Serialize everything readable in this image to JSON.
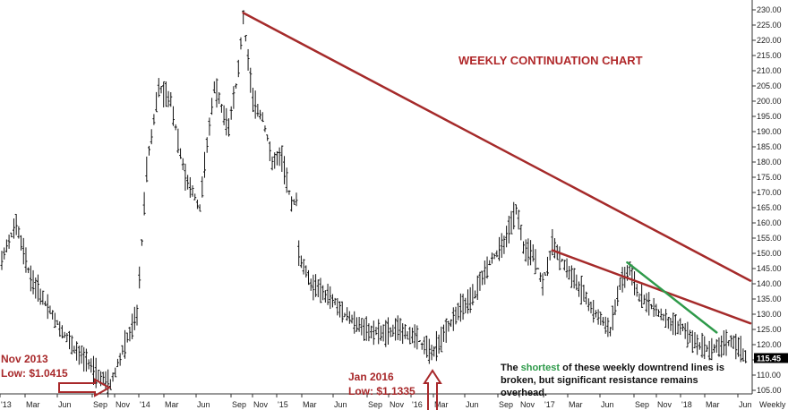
{
  "chart_data": {
    "type": "ohlc",
    "title": "WEEKLY CONTINUATION CHART",
    "ylim": [
      102,
      232
    ],
    "y_ticks": [
      105,
      110,
      115,
      120,
      125,
      130,
      135,
      140,
      145,
      150,
      155,
      160,
      165,
      170,
      175,
      180,
      185,
      190,
      195,
      200,
      205,
      210,
      215,
      220,
      225,
      230
    ],
    "y_tick_labels": [
      "105.00",
      "110.00",
      "115.00",
      "120.00",
      "125.00",
      "130.00",
      "135.00",
      "140.00",
      "145.00",
      "150.00",
      "155.00",
      "160.00",
      "165.00",
      "170.00",
      "175.00",
      "180.00",
      "185.00",
      "190.00",
      "195.00",
      "200.00",
      "205.00",
      "210.00",
      "215.00",
      "220.00",
      "225.00",
      "230.00"
    ],
    "x_tick_labels": [
      "'13",
      "Mar",
      "Jun",
      "Sep",
      "Nov",
      "'14",
      "Mar",
      "Jun",
      "Sep",
      "Nov",
      "'15",
      "Mar",
      "Jun",
      "Sep",
      "Nov",
      "'16",
      "Mar",
      "Jun",
      "Sep",
      "Nov",
      "'17",
      "Mar",
      "Jun",
      "Sep",
      "Nov",
      "'18",
      "Mar",
      "Jun"
    ],
    "timeframe_label": "Weekly",
    "last_price_label": "115.45",
    "last_price": 115.45,
    "price_path": [
      {
        "w": 0,
        "p": 148
      },
      {
        "w": 6,
        "p": 160
      },
      {
        "w": 12,
        "p": 142
      },
      {
        "w": 22,
        "p": 128
      },
      {
        "w": 32,
        "p": 117
      },
      {
        "w": 40,
        "p": 110
      },
      {
        "w": 45,
        "p": 107
      },
      {
        "w": 52,
        "p": 122
      },
      {
        "w": 56,
        "p": 130
      },
      {
        "w": 60,
        "p": 178
      },
      {
        "w": 65,
        "p": 205
      },
      {
        "w": 70,
        "p": 200
      },
      {
        "w": 76,
        "p": 175
      },
      {
        "w": 82,
        "p": 165
      },
      {
        "w": 88,
        "p": 205
      },
      {
        "w": 94,
        "p": 192
      },
      {
        "w": 98,
        "p": 210
      },
      {
        "w": 100,
        "p": 228
      },
      {
        "w": 104,
        "p": 200
      },
      {
        "w": 108,
        "p": 195
      },
      {
        "w": 112,
        "p": 180
      },
      {
        "w": 116,
        "p": 182
      },
      {
        "w": 120,
        "p": 166
      },
      {
        "w": 122,
        "p": 168
      },
      {
        "w": 123,
        "p": 150
      },
      {
        "w": 128,
        "p": 140
      },
      {
        "w": 135,
        "p": 136
      },
      {
        "w": 142,
        "p": 130
      },
      {
        "w": 150,
        "p": 125
      },
      {
        "w": 158,
        "p": 124
      },
      {
        "w": 165,
        "p": 125
      },
      {
        "w": 172,
        "p": 122
      },
      {
        "w": 178,
        "p": 117
      },
      {
        "w": 184,
        "p": 125
      },
      {
        "w": 190,
        "p": 132
      },
      {
        "w": 196,
        "p": 137
      },
      {
        "w": 202,
        "p": 147
      },
      {
        "w": 208,
        "p": 153
      },
      {
        "w": 213,
        "p": 165
      },
      {
        "w": 216,
        "p": 152
      },
      {
        "w": 220,
        "p": 150
      },
      {
        "w": 224,
        "p": 140
      },
      {
        "w": 228,
        "p": 153
      },
      {
        "w": 234,
        "p": 145
      },
      {
        "w": 240,
        "p": 138
      },
      {
        "w": 246,
        "p": 130
      },
      {
        "w": 252,
        "p": 125
      },
      {
        "w": 256,
        "p": 140
      },
      {
        "w": 260,
        "p": 145
      },
      {
        "w": 264,
        "p": 136
      },
      {
        "w": 270,
        "p": 132
      },
      {
        "w": 276,
        "p": 128
      },
      {
        "w": 282,
        "p": 125
      },
      {
        "w": 288,
        "p": 120
      },
      {
        "w": 294,
        "p": 118
      },
      {
        "w": 300,
        "p": 121
      },
      {
        "w": 304,
        "p": 120
      },
      {
        "w": 308,
        "p": 116
      }
    ],
    "trendlines": [
      {
        "color": "#a52a2a",
        "from": {
          "w": 100,
          "p": 229
        },
        "to": {
          "w": 310,
          "p": 141
        }
      },
      {
        "color": "#a52a2a",
        "from": {
          "w": 228,
          "p": 151
        },
        "to": {
          "w": 310,
          "p": 127
        }
      },
      {
        "color": "#2e9a4a",
        "from": {
          "w": 259,
          "p": 147
        },
        "to": {
          "w": 296,
          "p": 124
        }
      }
    ],
    "annotations": {
      "nov2013_line1": "Nov 2013",
      "nov2013_line2": "Low: $1.0415",
      "jan2016_line1": "Jan 2016",
      "jan2016_line2": "Low: $1.1335",
      "note_part1": "The",
      "note_highlight": "shortest",
      "note_part2": "of these weekly downtrend lines is",
      "note_line2": "broken, but significant resistance remains",
      "note_line3": "overhead."
    },
    "colors": {
      "trend_red": "#a52a2a",
      "trend_green": "#2e9a4a",
      "annotation_red": "#a8282a",
      "highlight_green": "#2e9a4a",
      "bars": "#111111"
    }
  }
}
